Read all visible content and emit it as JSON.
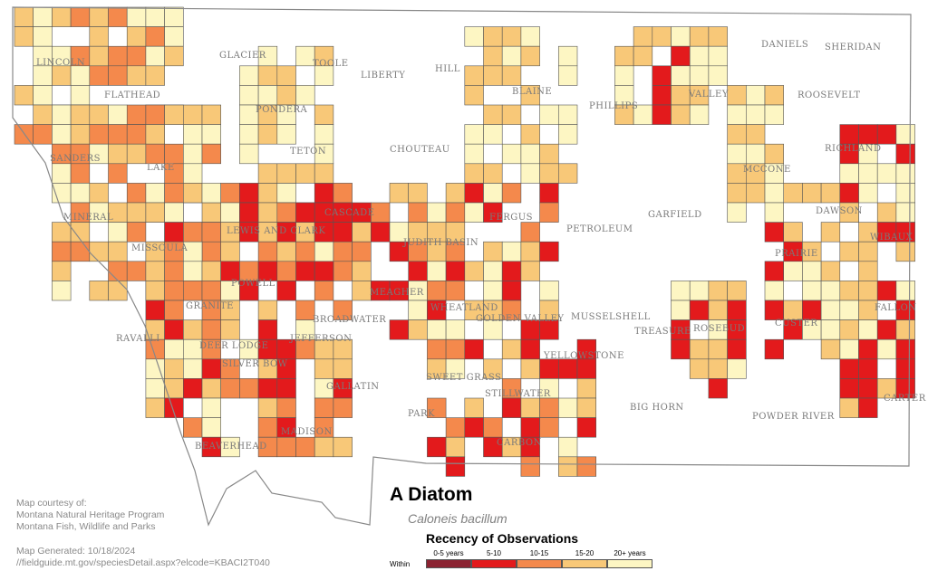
{
  "title": "A Diatom",
  "scientific_name": "Caloneis bacillum",
  "credits": [
    "Map courtesy of:",
    "Montana Natural Heritage Program",
    "Montana Fish, Wildlife and Parks"
  ],
  "generated": [
    "Map Generated: 10/18/2024",
    "//fieldguide.mt.gov/speciesDetail.aspx?elcode=KBACI2T040"
  ],
  "legend": {
    "title": "Recency of Observations",
    "within_label": "Within",
    "items": [
      {
        "label": "0-5 years",
        "color": "#8b2331"
      },
      {
        "label": "5-10",
        "color": "#e31a1c"
      },
      {
        "label": "10-15",
        "color": "#f4894c"
      },
      {
        "label": "15-20",
        "color": "#f8c878"
      },
      {
        "label": "20+ years",
        "color": "#fdf6c3"
      }
    ]
  },
  "counties": [
    "LINCOLN",
    "FLATHEAD",
    "GLACIER",
    "TOOLE",
    "LIBERTY",
    "HILL",
    "BLAINE",
    "PHILLIPS",
    "VALLEY",
    "DANIELS",
    "SHERIDAN",
    "ROOSEVELT",
    "PONDERA",
    "TETON",
    "SANDERS",
    "LAKE",
    "CHOUTEAU",
    "RICHLAND",
    "MCCONE",
    "MINERAL",
    "LEWIS AND CLARK",
    "CASCADE",
    "GARFIELD",
    "DAWSON",
    "MISSOULA",
    "JUDITH BASIN",
    "FERGUS",
    "PETROLEUM",
    "PRAIRIE",
    "WIBAUX",
    "POWELL",
    "MEAGHER",
    "GRANITE",
    "WHEATLAND",
    "GOLDEN VALLEY",
    "MUSSELSHELL",
    "CUSTER",
    "FALLON",
    "RAVALLI",
    "DEER LODGE",
    "JEFFERSON",
    "BROADWATER",
    "SILVER BOW",
    "TREASURE",
    "ROSEBUD",
    "YELLOWSTONE",
    "SWEET GRASS",
    "STILLWATER",
    "GALLATIN",
    "PARK",
    "BIG HORN",
    "POWDER RIVER",
    "CARTER",
    "MADISON",
    "BEAVERHEAD",
    "CARBON"
  ]
}
